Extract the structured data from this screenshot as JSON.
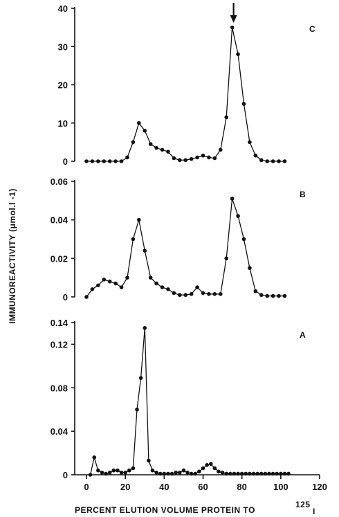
{
  "chart_data": [
    {
      "panel": "C",
      "type": "line",
      "y_ticks": [
        "0",
        "10",
        "20",
        "30",
        "40"
      ],
      "ylim": [
        0,
        40
      ],
      "peak_marker": "arrow",
      "peak_marker_x": 75,
      "x": [
        0,
        3,
        6,
        9,
        12,
        15,
        18,
        21,
        24,
        27,
        30,
        33,
        36,
        39,
        42,
        45,
        48,
        51,
        54,
        57,
        60,
        63,
        66,
        69,
        72,
        75,
        78,
        81,
        84,
        87,
        90,
        93,
        96,
        99,
        102
      ],
      "values": [
        0,
        0,
        0,
        0,
        0,
        0,
        0,
        1,
        5,
        10,
        8,
        4.5,
        3.5,
        3,
        2.5,
        0.8,
        0.3,
        0.3,
        0.6,
        1,
        1.5,
        1,
        0.8,
        3,
        11.5,
        35,
        28,
        15,
        5,
        1.5,
        0.3,
        0,
        0,
        0,
        0
      ]
    },
    {
      "panel": "B",
      "type": "line",
      "y_ticks": [
        "0",
        "0.02",
        "0.04",
        "0.06"
      ],
      "ylim": [
        0,
        0.06
      ],
      "x": [
        0,
        3,
        6,
        9,
        12,
        15,
        18,
        21,
        24,
        27,
        30,
        33,
        36,
        39,
        42,
        45,
        48,
        51,
        54,
        57,
        60,
        63,
        66,
        69,
        72,
        75,
        78,
        81,
        84,
        87,
        90,
        93,
        96,
        99,
        102
      ],
      "values": [
        0,
        0.004,
        0.006,
        0.009,
        0.008,
        0.007,
        0.005,
        0.01,
        0.03,
        0.04,
        0.024,
        0.01,
        0.007,
        0.005,
        0.004,
        0.002,
        0.001,
        0.001,
        0.0015,
        0.005,
        0.002,
        0.0015,
        0.0015,
        0.0015,
        0.02,
        0.051,
        0.042,
        0.03,
        0.015,
        0.003,
        0.001,
        0.0005,
        0.0005,
        0.0005,
        0.0005
      ]
    },
    {
      "panel": "A",
      "type": "line",
      "y_ticks": [
        "0",
        "0.04",
        "0.08",
        "0.12",
        "0.14"
      ],
      "ylim": [
        0,
        0.14
      ],
      "x_ticks": [
        "0",
        "20",
        "40",
        "60",
        "80",
        "100",
        "120"
      ],
      "xlim": [
        -5,
        120
      ],
      "xlabel": "PERCENT ELUTION VOLUME PROTEIN TO",
      "xlabel_superscript": "125",
      "xlabel_suffix": "I",
      "ylabel": "IMMUNOREACTIVITY (μmol.l -1)",
      "x": [
        2,
        4,
        6,
        8,
        10,
        12,
        14,
        16,
        18,
        20,
        22,
        24,
        26,
        28,
        30,
        32,
        34,
        36,
        38,
        40,
        42,
        44,
        46,
        48,
        50,
        52,
        54,
        56,
        58,
        60,
        62,
        64,
        66,
        68,
        70,
        72,
        74,
        76,
        78,
        80,
        82,
        84,
        86,
        88,
        90,
        92,
        94,
        96,
        98,
        100,
        102,
        104
      ],
      "values": [
        0,
        0.016,
        0.004,
        0.002,
        0.001,
        0.002,
        0.004,
        0.004,
        0.002,
        0.002,
        0.004,
        0.006,
        0.06,
        0.089,
        0.135,
        0.013,
        0.004,
        0.002,
        0.001,
        0.001,
        0.001,
        0.001,
        0.002,
        0.002,
        0.004,
        0.002,
        0.001,
        0.001,
        0.003,
        0.006,
        0.009,
        0.01,
        0.006,
        0.003,
        0.002,
        0.001,
        0.001,
        0.001,
        0.001,
        0.001,
        0.001,
        0.001,
        0.001,
        0.001,
        0.001,
        0.001,
        0.001,
        0.001,
        0.001,
        0.001,
        0.001,
        0.001
      ]
    }
  ]
}
